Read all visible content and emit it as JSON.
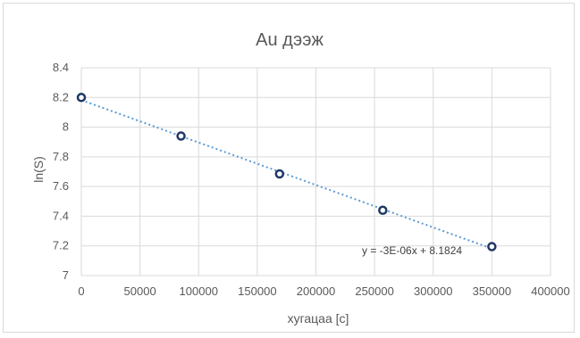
{
  "chart_data": {
    "type": "scatter",
    "title": "Au дээж",
    "xlabel": "хугацаа [с]",
    "ylabel": "ln(S)",
    "xlim": [
      0,
      400000
    ],
    "ylim": [
      7,
      8.4
    ],
    "x_ticks": [
      0,
      50000,
      100000,
      150000,
      200000,
      250000,
      300000,
      350000,
      400000
    ],
    "y_ticks": [
      7,
      7.2,
      7.4,
      7.6,
      7.8,
      8,
      8.2,
      8.4
    ],
    "x_tick_labels": [
      "0",
      "50000",
      "100000",
      "150000",
      "200000",
      "250000",
      "300000",
      "350000",
      "400000"
    ],
    "y_tick_labels": [
      "7",
      "7.2",
      "7.4",
      "7.6",
      "7.8",
      "8",
      "8.2",
      "8.4"
    ],
    "grid": true,
    "series": [
      {
        "x": [
          0,
          85000,
          169000,
          257000,
          350000
        ],
        "y": [
          8.2,
          7.94,
          7.685,
          7.44,
          7.195
        ],
        "marker_color": "#1f3864"
      }
    ],
    "trendline": {
      "type": "linear",
      "slope": -2.86e-06,
      "intercept": 8.1824,
      "x_range": [
        0,
        350000
      ],
      "label": "y = -3E-06x + 8.1824",
      "color": "#5b9bd5"
    },
    "colors": {
      "grid": "#d9d9d9",
      "text": "#595959",
      "marker": "#1f3864",
      "trend": "#5b9bd5"
    }
  }
}
